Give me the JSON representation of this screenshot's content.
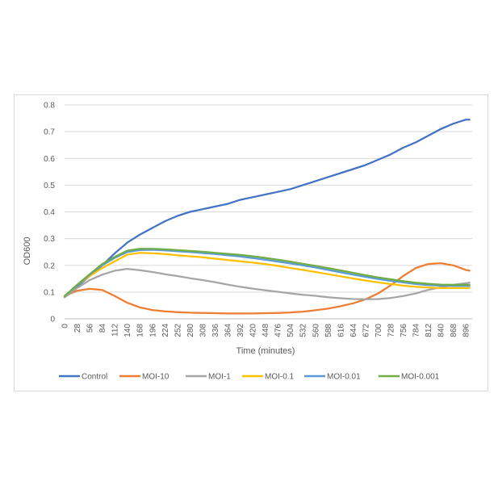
{
  "chart_data": {
    "type": "line",
    "title": "",
    "xlabel": "Time (minutes)",
    "ylabel": "OD600",
    "xlim": [
      0,
      910
    ],
    "ylim": [
      0,
      0.8
    ],
    "yticks": [
      "0",
      "0.1",
      "0.2",
      "0.3",
      "0.4",
      "0.5",
      "0.6",
      "0.7",
      "0.8"
    ],
    "xticks": [
      "0",
      "28",
      "56",
      "84",
      "112",
      "140",
      "168",
      "196",
      "224",
      "252",
      "280",
      "308",
      "336",
      "364",
      "392",
      "420",
      "448",
      "476",
      "504",
      "532",
      "560",
      "588",
      "616",
      "644",
      "672",
      "700",
      "728",
      "756",
      "784",
      "812",
      "840",
      "868",
      "896"
    ],
    "grid": "horizontal",
    "legend": "bottom",
    "x": [
      0,
      28,
      56,
      84,
      112,
      140,
      168,
      196,
      224,
      252,
      280,
      308,
      336,
      364,
      392,
      420,
      448,
      476,
      504,
      532,
      560,
      588,
      616,
      644,
      672,
      700,
      728,
      756,
      784,
      812,
      840,
      868,
      896,
      904
    ],
    "series": [
      {
        "name": "Control",
        "color": "#4472c4",
        "values": [
          0.085,
          0.12,
          0.16,
          0.2,
          0.245,
          0.285,
          0.315,
          0.34,
          0.365,
          0.385,
          0.4,
          0.41,
          0.42,
          0.43,
          0.445,
          0.455,
          0.465,
          0.475,
          0.485,
          0.5,
          0.515,
          0.53,
          0.545,
          0.56,
          0.575,
          0.595,
          0.615,
          0.64,
          0.66,
          0.685,
          0.71,
          0.73,
          0.745,
          0.745
        ]
      },
      {
        "name": "MOI-10",
        "color": "#ed7d31",
        "values": [
          0.085,
          0.105,
          0.112,
          0.108,
          0.085,
          0.06,
          0.043,
          0.033,
          0.028,
          0.025,
          0.023,
          0.022,
          0.021,
          0.02,
          0.02,
          0.02,
          0.021,
          0.022,
          0.024,
          0.027,
          0.032,
          0.038,
          0.047,
          0.058,
          0.073,
          0.095,
          0.125,
          0.16,
          0.19,
          0.205,
          0.208,
          0.2,
          0.183,
          0.18
        ]
      },
      {
        "name": "MOI-1",
        "color": "#a5a5a5",
        "values": [
          0.08,
          0.115,
          0.145,
          0.165,
          0.18,
          0.187,
          0.182,
          0.175,
          0.167,
          0.16,
          0.152,
          0.145,
          0.137,
          0.128,
          0.12,
          0.113,
          0.107,
          0.101,
          0.095,
          0.09,
          0.086,
          0.081,
          0.077,
          0.074,
          0.073,
          0.074,
          0.078,
          0.085,
          0.095,
          0.108,
          0.118,
          0.127,
          0.133,
          0.135
        ]
      },
      {
        "name": "MOI-0.1",
        "color": "#ffc000",
        "values": [
          0.085,
          0.125,
          0.16,
          0.19,
          0.215,
          0.24,
          0.247,
          0.245,
          0.242,
          0.238,
          0.234,
          0.23,
          0.225,
          0.22,
          0.215,
          0.21,
          0.205,
          0.198,
          0.19,
          0.183,
          0.175,
          0.167,
          0.159,
          0.151,
          0.143,
          0.136,
          0.13,
          0.124,
          0.12,
          0.117,
          0.115,
          0.115,
          0.115,
          0.115
        ]
      },
      {
        "name": "MOI-0.01",
        "color": "#5b9bd5",
        "values": [
          0.085,
          0.125,
          0.165,
          0.2,
          0.228,
          0.25,
          0.257,
          0.258,
          0.256,
          0.253,
          0.25,
          0.246,
          0.242,
          0.238,
          0.233,
          0.227,
          0.221,
          0.214,
          0.207,
          0.2,
          0.192,
          0.183,
          0.174,
          0.165,
          0.157,
          0.149,
          0.142,
          0.136,
          0.13,
          0.126,
          0.124,
          0.123,
          0.123,
          0.123
        ]
      },
      {
        "name": "MOI-0.001",
        "color": "#70ad47",
        "values": [
          0.085,
          0.127,
          0.167,
          0.205,
          0.232,
          0.255,
          0.262,
          0.262,
          0.26,
          0.257,
          0.254,
          0.251,
          0.247,
          0.243,
          0.239,
          0.234,
          0.228,
          0.221,
          0.214,
          0.206,
          0.198,
          0.19,
          0.181,
          0.172,
          0.163,
          0.155,
          0.148,
          0.141,
          0.135,
          0.131,
          0.128,
          0.127,
          0.127,
          0.127
        ]
      }
    ]
  }
}
